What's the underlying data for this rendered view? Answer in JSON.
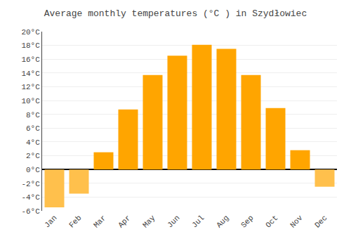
{
  "chart_data": {
    "type": "bar",
    "title": "Average monthly temperatures (°C ) in Szydłowiec",
    "categories": [
      "Jan",
      "Feb",
      "Mar",
      "Apr",
      "May",
      "Jun",
      "Jul",
      "Aug",
      "Sep",
      "Oct",
      "Nov",
      "Dec"
    ],
    "values": [
      -5.5,
      -3.5,
      2.5,
      8.7,
      13.7,
      16.5,
      18.1,
      17.5,
      13.7,
      8.9,
      2.8,
      -2.5
    ],
    "colors": [
      "#FFC04C",
      "#FFC04C",
      "#FFA500",
      "#FFA500",
      "#FFA500",
      "#FFA500",
      "#FFA500",
      "#FFA500",
      "#FFA500",
      "#FFA500",
      "#FFA500",
      "#FFC04C"
    ],
    "ylim": [
      -6,
      20
    ],
    "yticks": [
      {
        "value": -6,
        "label": "-6°C"
      },
      {
        "value": -4,
        "label": "-4°C"
      },
      {
        "value": -2,
        "label": "-2°C"
      },
      {
        "value": 0,
        "label": "0°C"
      },
      {
        "value": 2,
        "label": "2°C"
      },
      {
        "value": 4,
        "label": "4°C"
      },
      {
        "value": 6,
        "label": "6°C"
      },
      {
        "value": 8,
        "label": "8°C"
      },
      {
        "value": 10,
        "label": "10°C"
      },
      {
        "value": 12,
        "label": "12°C"
      },
      {
        "value": 14,
        "label": "14°C"
      },
      {
        "value": 16,
        "label": "16°C"
      },
      {
        "value": 18,
        "label": "18°C"
      },
      {
        "value": 20,
        "label": "20°C"
      }
    ],
    "grid": true
  }
}
